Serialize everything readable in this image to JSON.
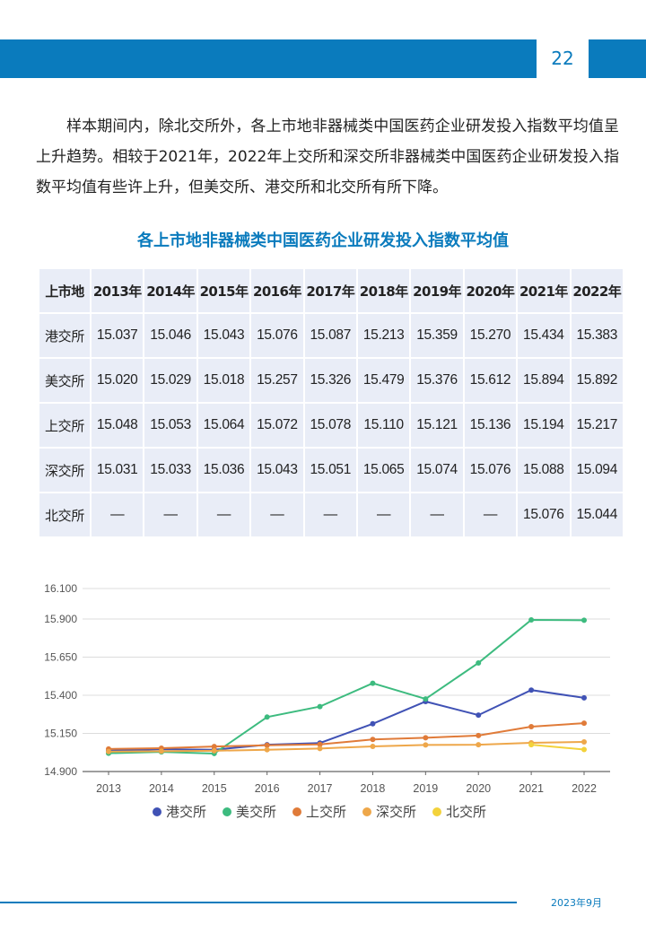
{
  "header": {
    "page_number": "22"
  },
  "intro": "样本期间内，除北交所外，各上市地非器械类中国医药企业研发投入指数平均值呈上升趋势。相较于2021年，2022年上交所和深交所非器械类中国医药企业研发投入指数平均值有些许上升，但美交所、港交所和北交所有所下降。",
  "table": {
    "title": "各上市地非器械类中国医药企业研发投入指数平均值",
    "headers": [
      "上市地",
      "2013年",
      "2014年",
      "2015年",
      "2016年",
      "2017年",
      "2018年",
      "2019年",
      "2020年",
      "2021年",
      "2022年"
    ],
    "rows": [
      [
        "港交所",
        "15.037",
        "15.046",
        "15.043",
        "15.076",
        "15.087",
        "15.213",
        "15.359",
        "15.270",
        "15.434",
        "15.383"
      ],
      [
        "美交所",
        "15.020",
        "15.029",
        "15.018",
        "15.257",
        "15.326",
        "15.479",
        "15.376",
        "15.612",
        "15.894",
        "15.892"
      ],
      [
        "上交所",
        "15.048",
        "15.053",
        "15.064",
        "15.072",
        "15.078",
        "15.110",
        "15.121",
        "15.136",
        "15.194",
        "15.217"
      ],
      [
        "深交所",
        "15.031",
        "15.033",
        "15.036",
        "15.043",
        "15.051",
        "15.065",
        "15.074",
        "15.076",
        "15.088",
        "15.094"
      ],
      [
        "北交所",
        "—",
        "—",
        "—",
        "—",
        "—",
        "—",
        "—",
        "—",
        "15.076",
        "15.044"
      ]
    ]
  },
  "chart_data": {
    "type": "line",
    "x": [
      "2013",
      "2014",
      "2015",
      "2016",
      "2017",
      "2018",
      "2019",
      "2020",
      "2021",
      "2022"
    ],
    "ylim": [
      14.9,
      16.1
    ],
    "yticks": [
      "14.900",
      "15.150",
      "15.400",
      "15.650",
      "15.900",
      "16.100"
    ],
    "ytick_values": [
      14.9,
      15.15,
      15.4,
      15.65,
      15.9,
      16.1
    ],
    "grid": true,
    "legend": "bottom",
    "series": [
      {
        "name": "港交所",
        "color": "#4052b5",
        "values": [
          15.037,
          15.046,
          15.043,
          15.076,
          15.087,
          15.213,
          15.359,
          15.27,
          15.434,
          15.383
        ]
      },
      {
        "name": "美交所",
        "color": "#3dbb7f",
        "values": [
          15.02,
          15.029,
          15.018,
          15.257,
          15.326,
          15.479,
          15.376,
          15.612,
          15.894,
          15.892
        ]
      },
      {
        "name": "上交所",
        "color": "#e07b39",
        "values": [
          15.048,
          15.053,
          15.064,
          15.072,
          15.078,
          15.11,
          15.121,
          15.136,
          15.194,
          15.217
        ]
      },
      {
        "name": "深交所",
        "color": "#eea74a",
        "values": [
          15.031,
          15.033,
          15.036,
          15.043,
          15.051,
          15.065,
          15.074,
          15.076,
          15.088,
          15.094
        ]
      },
      {
        "name": "北交所",
        "color": "#f3d23b",
        "values": [
          null,
          null,
          null,
          null,
          null,
          null,
          null,
          null,
          15.076,
          15.044
        ]
      }
    ]
  },
  "footer": {
    "date": "2023年9月"
  }
}
